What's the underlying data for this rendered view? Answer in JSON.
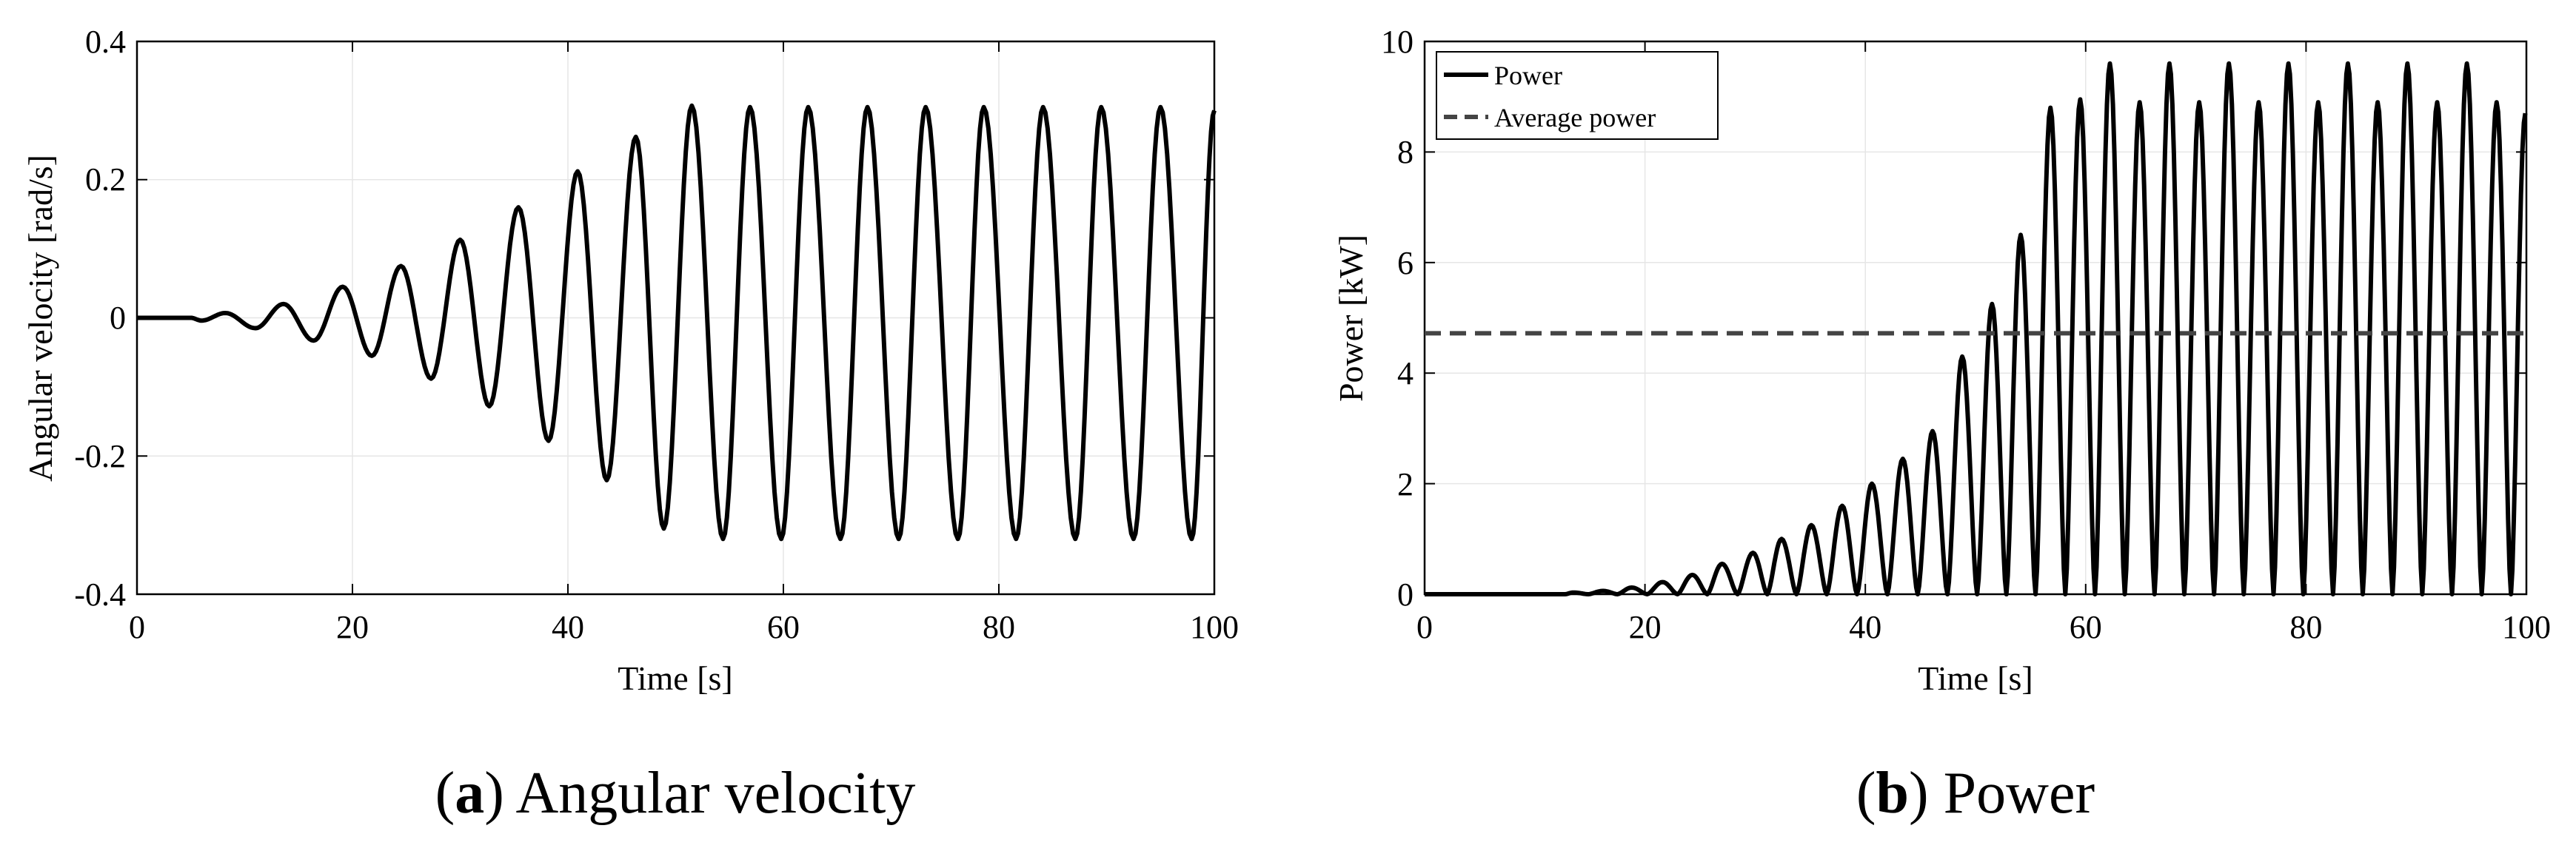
{
  "figure": {
    "panels": [
      {
        "caption_letter": "a",
        "caption_text": "Angular velocity",
        "xlabel": "Time [s]",
        "ylabel": "Angular velocity [rad/s]",
        "xticks": [
          "0",
          "20",
          "40",
          "60",
          "80",
          "100"
        ],
        "yticks": [
          "-0.4",
          "-0.2",
          "0",
          "0.2",
          "0.4"
        ]
      },
      {
        "caption_letter": "b",
        "caption_text": "Power",
        "xlabel": "Time [s]",
        "ylabel": "Power [kW]",
        "xticks": [
          "0",
          "20",
          "40",
          "60",
          "80",
          "100"
        ],
        "yticks": [
          "0",
          "2",
          "4",
          "6",
          "8",
          "10"
        ],
        "legend": [
          "Power",
          "Average power"
        ]
      }
    ]
  },
  "chart_data": [
    {
      "type": "line",
      "title": "Angular velocity",
      "xlabel": "Time [s]",
      "ylabel": "Angular velocity [rad/s]",
      "xlim": [
        0,
        100
      ],
      "ylim": [
        -0.4,
        0.4
      ],
      "grid": true,
      "line_color": "#000000",
      "series": [
        {
          "name": "Angular velocity",
          "style": "solid",
          "approx_period_s": 5.45,
          "peaks": [
            [
              8.2,
              0.007
            ],
            [
              13.6,
              0.02
            ],
            [
              19.1,
              0.045
            ],
            [
              24.5,
              0.075
            ],
            [
              30.0,
              0.113
            ],
            [
              35.4,
              0.16
            ],
            [
              40.9,
              0.212
            ],
            [
              46.3,
              0.262
            ],
            [
              51.5,
              0.307
            ],
            [
              56.9,
              0.305
            ],
            [
              62.3,
              0.305
            ],
            [
              67.8,
              0.305
            ],
            [
              73.2,
              0.305
            ],
            [
              78.6,
              0.305
            ],
            [
              84.1,
              0.305
            ],
            [
              89.5,
              0.305
            ],
            [
              95.0,
              0.305
            ],
            [
              100.0,
              0.3
            ]
          ],
          "troughs": [
            [
              6.0,
              -0.004
            ],
            [
              11.0,
              -0.015
            ],
            [
              16.4,
              -0.033
            ],
            [
              21.8,
              -0.055
            ],
            [
              27.3,
              -0.088
            ],
            [
              32.7,
              -0.128
            ],
            [
              38.2,
              -0.178
            ],
            [
              43.6,
              -0.235
            ],
            [
              48.9,
              -0.305
            ],
            [
              54.4,
              -0.32
            ],
            [
              59.8,
              -0.32
            ],
            [
              65.3,
              -0.32
            ],
            [
              70.7,
              -0.32
            ],
            [
              76.2,
              -0.32
            ],
            [
              81.6,
              -0.32
            ],
            [
              87.1,
              -0.32
            ],
            [
              92.5,
              -0.32
            ],
            [
              97.9,
              -0.32
            ]
          ]
        }
      ]
    },
    {
      "type": "line",
      "title": "Power",
      "xlabel": "Time [s]",
      "ylabel": "Power [kW]",
      "xlim": [
        0,
        100
      ],
      "ylim": [
        0,
        10
      ],
      "grid": true,
      "legend_position": "top-left",
      "series": [
        {
          "name": "Power",
          "style": "solid",
          "color": "#000000",
          "lobe_peaks": [
            [
              13.5,
              0.03
            ],
            [
              16.2,
              0.06
            ],
            [
              18.8,
              0.12
            ],
            [
              21.6,
              0.22
            ],
            [
              24.3,
              0.35
            ],
            [
              27.0,
              0.55
            ],
            [
              29.8,
              0.75
            ],
            [
              32.4,
              1.0
            ],
            [
              35.1,
              1.25
            ],
            [
              37.9,
              1.6
            ],
            [
              40.6,
              2.0
            ],
            [
              43.4,
              2.45
            ],
            [
              46.1,
              2.95
            ],
            [
              48.8,
              4.3
            ],
            [
              51.5,
              5.25
            ],
            [
              54.1,
              6.5
            ],
            [
              56.8,
              8.8
            ],
            [
              59.5,
              8.95
            ],
            [
              62.2,
              9.6
            ],
            [
              64.9,
              8.9
            ],
            [
              67.6,
              9.6
            ],
            [
              70.3,
              8.9
            ],
            [
              73.0,
              9.6
            ],
            [
              75.7,
              8.9
            ],
            [
              78.4,
              9.6
            ],
            [
              81.1,
              8.9
            ],
            [
              83.8,
              9.6
            ],
            [
              86.5,
              8.9
            ],
            [
              89.2,
              9.6
            ],
            [
              91.9,
              8.9
            ],
            [
              94.6,
              9.6
            ],
            [
              97.3,
              8.9
            ],
            [
              99.9,
              8.7
            ]
          ]
        },
        {
          "name": "Average power",
          "style": "dashed",
          "color": "#444444",
          "x": [
            0,
            100
          ],
          "y": [
            4.72,
            4.72
          ]
        }
      ]
    }
  ]
}
